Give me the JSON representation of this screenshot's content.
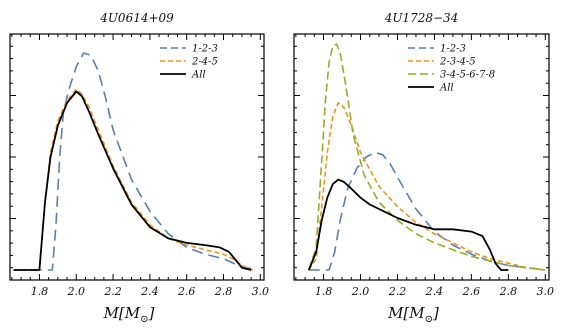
{
  "chart_data": [
    {
      "type": "line",
      "title": "4U0614+09",
      "xlabel": "M[M_⊙]",
      "xlabel_main": "M[M",
      "xlabel_sub": "⊙",
      "xlabel_close": "]",
      "ylabel": "",
      "xlim": [
        1.64,
        3.02
      ],
      "ylim": [
        0,
        1.0
      ],
      "xticks": [
        1.8,
        2.0,
        2.2,
        2.4,
        2.6,
        2.8,
        3.0
      ],
      "xtick_labels": [
        "1.8",
        "2.0",
        "2.2",
        "2.4",
        "2.6",
        "2.8",
        "3.0"
      ],
      "legend_position": "top-right",
      "series": [
        {
          "name": "1-2-3",
          "color": "#5b7fb0",
          "dash": "long-dash",
          "x": [
            1.66,
            1.87,
            1.89,
            1.91,
            1.93,
            1.96,
            2.0,
            2.04,
            2.08,
            2.12,
            2.16,
            2.2,
            2.3,
            2.4,
            2.5,
            2.6,
            2.7,
            2.8,
            2.88,
            2.98
          ],
          "y": [
            0.0,
            0.0,
            0.2,
            0.5,
            0.7,
            0.8,
            0.9,
            0.96,
            0.95,
            0.88,
            0.76,
            0.62,
            0.4,
            0.26,
            0.16,
            0.1,
            0.07,
            0.05,
            0.02,
            0.0
          ]
        },
        {
          "name": "2-4-5",
          "color": "#e89520",
          "dash": "short-dash",
          "x": [
            1.66,
            1.8,
            1.83,
            1.86,
            1.9,
            1.95,
            2.0,
            2.03,
            2.07,
            2.12,
            2.2,
            2.3,
            2.4,
            2.5,
            2.6,
            2.7,
            2.8,
            2.85,
            2.9,
            2.96
          ],
          "y": [
            0.0,
            0.0,
            0.3,
            0.52,
            0.66,
            0.75,
            0.8,
            0.78,
            0.72,
            0.62,
            0.46,
            0.3,
            0.2,
            0.14,
            0.11,
            0.09,
            0.07,
            0.05,
            0.02,
            0.0
          ]
        },
        {
          "name": "All",
          "color": "#000000",
          "dash": "solid",
          "x": [
            1.66,
            1.8,
            1.83,
            1.86,
            1.9,
            1.95,
            2.0,
            2.03,
            2.07,
            2.12,
            2.2,
            2.3,
            2.4,
            2.5,
            2.6,
            2.7,
            2.78,
            2.83,
            2.86,
            2.9,
            2.95
          ],
          "y": [
            0.0,
            0.0,
            0.3,
            0.5,
            0.64,
            0.74,
            0.79,
            0.77,
            0.7,
            0.6,
            0.45,
            0.29,
            0.19,
            0.14,
            0.12,
            0.11,
            0.1,
            0.08,
            0.05,
            0.01,
            0.0
          ]
        }
      ]
    },
    {
      "type": "line",
      "title": "4U1728−34",
      "xlabel": "M[M_⊙]",
      "xlabel_main": "M[M",
      "xlabel_sub": "⊙",
      "xlabel_close": "]",
      "ylabel": "",
      "xlim": [
        1.64,
        3.02
      ],
      "ylim": [
        0,
        1.0
      ],
      "xticks": [
        1.8,
        2.0,
        2.2,
        2.4,
        2.6,
        2.8,
        3.0
      ],
      "xtick_labels": [
        "1.8",
        "2.0",
        "2.2",
        "2.4",
        "2.6",
        "2.8",
        "3.0"
      ],
      "legend_position": "top-right",
      "series": [
        {
          "name": "1-2-3",
          "color": "#5b7fb0",
          "dash": "long-dash",
          "x": [
            1.72,
            1.83,
            1.86,
            1.89,
            1.93,
            1.98,
            2.03,
            2.08,
            2.12,
            2.16,
            2.2,
            2.3,
            2.4,
            2.5,
            2.6,
            2.7,
            2.8,
            2.9,
            3.0
          ],
          "y": [
            0.0,
            0.0,
            0.08,
            0.22,
            0.36,
            0.45,
            0.5,
            0.52,
            0.51,
            0.47,
            0.41,
            0.27,
            0.17,
            0.11,
            0.07,
            0.04,
            0.02,
            0.01,
            0.0
          ]
        },
        {
          "name": "2-3-4-5",
          "color": "#e89520",
          "dash": "short-dash",
          "x": [
            1.72,
            1.76,
            1.79,
            1.82,
            1.85,
            1.88,
            1.91,
            1.95,
            2.0,
            2.1,
            2.2,
            2.3,
            2.4,
            2.5,
            2.6,
            2.7,
            2.8,
            2.9,
            3.0
          ],
          "y": [
            0.0,
            0.05,
            0.28,
            0.52,
            0.68,
            0.74,
            0.72,
            0.64,
            0.52,
            0.37,
            0.28,
            0.21,
            0.16,
            0.12,
            0.08,
            0.05,
            0.03,
            0.01,
            0.0
          ]
        },
        {
          "name": "3-4-5-6-7-8",
          "color": "#9aaa2a",
          "dash": "dash",
          "x": [
            1.72,
            1.76,
            1.79,
            1.81,
            1.83,
            1.85,
            1.87,
            1.89,
            1.92,
            1.96,
            2.02,
            2.1,
            2.2,
            2.3,
            2.4,
            2.5,
            2.6,
            2.7,
            2.8,
            2.9,
            3.0
          ],
          "y": [
            0.0,
            0.1,
            0.48,
            0.75,
            0.92,
            0.99,
            1.0,
            0.96,
            0.82,
            0.6,
            0.42,
            0.3,
            0.22,
            0.16,
            0.12,
            0.09,
            0.06,
            0.04,
            0.02,
            0.01,
            0.0
          ]
        },
        {
          "name": "All",
          "color": "#000000",
          "dash": "solid",
          "x": [
            1.72,
            1.76,
            1.79,
            1.82,
            1.85,
            1.88,
            1.91,
            1.95,
            2.0,
            2.05,
            2.1,
            2.2,
            2.3,
            2.4,
            2.5,
            2.6,
            2.66,
            2.7,
            2.73,
            2.76,
            2.8
          ],
          "y": [
            0.0,
            0.08,
            0.22,
            0.32,
            0.38,
            0.4,
            0.39,
            0.36,
            0.32,
            0.29,
            0.27,
            0.23,
            0.2,
            0.18,
            0.18,
            0.17,
            0.15,
            0.09,
            0.03,
            0.0,
            0.0
          ]
        }
      ]
    }
  ]
}
